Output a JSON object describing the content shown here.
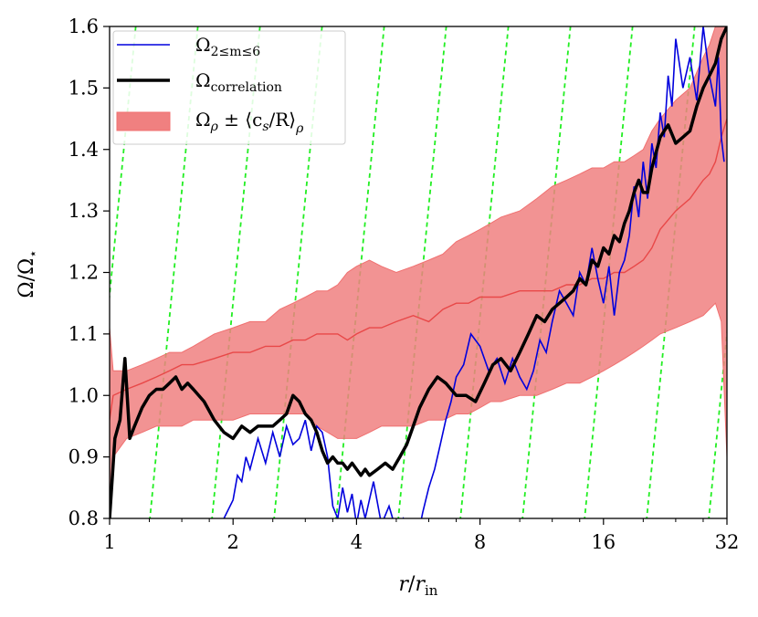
{
  "chart_data": {
    "type": "line",
    "title": "",
    "xlabel": "r/r_in",
    "ylabel": "Ω/Ω⋆",
    "xscale": "log2",
    "xlim": [
      1,
      32
    ],
    "ylim": [
      0.8,
      1.6
    ],
    "xticks": [
      1,
      2,
      4,
      8,
      16,
      32
    ],
    "xtick_labels": [
      "1",
      "2",
      "4",
      "8",
      "16",
      "32"
    ],
    "yticks": [
      0.8,
      0.9,
      1.0,
      1.1,
      1.2,
      1.3,
      1.4,
      1.5,
      1.6
    ],
    "ytick_labels": [
      "0.8",
      "0.9",
      "1.0",
      "1.1",
      "1.2",
      "1.3",
      "1.4",
      "1.5",
      "1.6"
    ],
    "grid": false,
    "legend_position": "top-left",
    "legend": [
      {
        "label_main": "Ω",
        "label_sub": "2≤m≤6",
        "style": "thin-line",
        "color": "#0000dd"
      },
      {
        "label_main": "Ω",
        "label_sub": "correlation",
        "style": "thick-line",
        "color": "#000000"
      },
      {
        "label_main": "Ω",
        "label_sub": "ρ",
        "label_suffix": " ± ⟨c",
        "label_suffix_sub": "s",
        "label_suffix_end": "/R⟩",
        "label_end_sub": "ρ",
        "style": "band",
        "color": "#f07070"
      }
    ],
    "series": [
      {
        "name": "Ω_{2≤m≤6}",
        "color": "#0000dd",
        "x": [
          1.9,
          2.0,
          2.05,
          2.1,
          2.15,
          2.2,
          2.3,
          2.4,
          2.5,
          2.6,
          2.7,
          2.8,
          2.9,
          3.0,
          3.1,
          3.2,
          3.3,
          3.4,
          3.45,
          3.5,
          3.6,
          3.7,
          3.8,
          3.9,
          4.0,
          4.1,
          4.2,
          4.4,
          4.6,
          4.8,
          5.0,
          5.2,
          5.4,
          5.5,
          5.6,
          5.8,
          6.0,
          6.2,
          6.4,
          6.6,
          6.8,
          7.0,
          7.3,
          7.6,
          8.0,
          8.4,
          8.8,
          9.2,
          9.6,
          10.0,
          10.4,
          10.8,
          11.2,
          11.6,
          12.0,
          12.5,
          13.0,
          13.5,
          14.0,
          14.5,
          15.0,
          15.5,
          16.0,
          16.5,
          17.0,
          17.5,
          18.0,
          18.5,
          19.0,
          19.5,
          20.0,
          20.5,
          21.0,
          21.5,
          22.0,
          22.5,
          23.0,
          23.5,
          24.0,
          25.0,
          26.0,
          27.0,
          28.0,
          29.0,
          30.0,
          30.5,
          31.0,
          31.5
        ],
        "y": [
          0.8,
          0.83,
          0.87,
          0.86,
          0.9,
          0.88,
          0.93,
          0.89,
          0.94,
          0.9,
          0.95,
          0.92,
          0.93,
          0.96,
          0.91,
          0.95,
          0.94,
          0.9,
          0.86,
          0.82,
          0.8,
          0.85,
          0.81,
          0.84,
          0.79,
          0.83,
          0.8,
          0.86,
          0.79,
          0.82,
          0.78,
          0.8,
          0.77,
          0.79,
          0.76,
          0.81,
          0.85,
          0.88,
          0.92,
          0.96,
          0.99,
          1.03,
          1.05,
          1.1,
          1.08,
          1.04,
          1.06,
          1.02,
          1.06,
          1.03,
          1.01,
          1.04,
          1.09,
          1.07,
          1.12,
          1.17,
          1.15,
          1.13,
          1.2,
          1.18,
          1.24,
          1.19,
          1.15,
          1.21,
          1.13,
          1.2,
          1.22,
          1.26,
          1.34,
          1.29,
          1.38,
          1.32,
          1.41,
          1.37,
          1.46,
          1.42,
          1.52,
          1.47,
          1.58,
          1.5,
          1.55,
          1.48,
          1.6,
          1.52,
          1.47,
          1.55,
          1.42,
          1.38
        ]
      },
      {
        "name": "Ω_correlation",
        "color": "#000000",
        "x": [
          1.0,
          1.03,
          1.06,
          1.09,
          1.12,
          1.15,
          1.2,
          1.25,
          1.3,
          1.35,
          1.4,
          1.45,
          1.5,
          1.55,
          1.6,
          1.7,
          1.8,
          1.9,
          2.0,
          2.1,
          2.2,
          2.3,
          2.4,
          2.5,
          2.6,
          2.7,
          2.8,
          2.9,
          3.0,
          3.1,
          3.2,
          3.3,
          3.4,
          3.5,
          3.6,
          3.7,
          3.8,
          3.9,
          4.0,
          4.1,
          4.2,
          4.3,
          4.5,
          4.7,
          4.9,
          5.1,
          5.3,
          5.5,
          5.7,
          6.0,
          6.3,
          6.6,
          7.0,
          7.4,
          7.8,
          8.2,
          8.6,
          9.0,
          9.5,
          10.0,
          10.5,
          11.0,
          11.5,
          12.0,
          12.5,
          13.0,
          13.5,
          14.0,
          14.5,
          15.0,
          15.5,
          16.0,
          16.5,
          17.0,
          17.5,
          18.0,
          18.5,
          19.0,
          19.5,
          20.0,
          20.5,
          21.0,
          22.0,
          23.0,
          24.0,
          25.0,
          26.0,
          27.0,
          28.0,
          29.0,
          30.0,
          31.0,
          32.0
        ],
        "y": [
          0.8,
          0.93,
          0.96,
          1.06,
          0.93,
          0.95,
          0.98,
          1.0,
          1.01,
          1.01,
          1.02,
          1.03,
          1.01,
          1.02,
          1.01,
          0.99,
          0.96,
          0.94,
          0.93,
          0.95,
          0.94,
          0.95,
          0.95,
          0.95,
          0.96,
          0.97,
          1.0,
          0.99,
          0.97,
          0.96,
          0.94,
          0.91,
          0.89,
          0.9,
          0.89,
          0.89,
          0.88,
          0.89,
          0.88,
          0.87,
          0.88,
          0.87,
          0.88,
          0.89,
          0.88,
          0.9,
          0.92,
          0.95,
          0.98,
          1.01,
          1.03,
          1.02,
          1.0,
          1.0,
          0.99,
          1.02,
          1.05,
          1.06,
          1.04,
          1.07,
          1.1,
          1.13,
          1.12,
          1.14,
          1.15,
          1.16,
          1.17,
          1.19,
          1.18,
          1.22,
          1.21,
          1.24,
          1.23,
          1.26,
          1.25,
          1.28,
          1.3,
          1.33,
          1.35,
          1.33,
          1.33,
          1.37,
          1.42,
          1.44,
          1.41,
          1.42,
          1.43,
          1.47,
          1.5,
          1.52,
          1.54,
          1.58,
          1.6
        ]
      },
      {
        "name": "Ω_ρ ± ⟨c_s/R⟩_ρ",
        "color": "#f07070",
        "x": [
          1.0,
          1.02,
          1.1,
          1.2,
          1.3,
          1.4,
          1.5,
          1.6,
          1.8,
          2.0,
          2.2,
          2.4,
          2.6,
          2.8,
          3.0,
          3.2,
          3.4,
          3.6,
          3.8,
          4.0,
          4.3,
          4.6,
          5.0,
          5.5,
          6.0,
          6.5,
          7.0,
          7.5,
          8.0,
          8.5,
          9.0,
          10.0,
          11.0,
          12.0,
          13.0,
          14.0,
          15.0,
          16.0,
          17.0,
          18.0,
          19.0,
          20.0,
          21.0,
          22.0,
          24.0,
          26.0,
          28.0,
          29.0,
          30.0,
          31.0,
          32.0
        ],
        "center": [
          0.96,
          1.0,
          1.01,
          1.02,
          1.03,
          1.04,
          1.05,
          1.05,
          1.06,
          1.07,
          1.07,
          1.08,
          1.08,
          1.09,
          1.09,
          1.1,
          1.1,
          1.1,
          1.09,
          1.1,
          1.11,
          1.11,
          1.12,
          1.13,
          1.12,
          1.14,
          1.15,
          1.15,
          1.16,
          1.16,
          1.16,
          1.17,
          1.17,
          1.17,
          1.18,
          1.18,
          1.19,
          1.19,
          1.2,
          1.2,
          1.21,
          1.22,
          1.24,
          1.27,
          1.3,
          1.32,
          1.35,
          1.36,
          1.38,
          1.42,
          1.45
        ],
        "upper": [
          1.11,
          1.04,
          1.04,
          1.05,
          1.06,
          1.07,
          1.07,
          1.08,
          1.1,
          1.11,
          1.12,
          1.12,
          1.14,
          1.15,
          1.16,
          1.17,
          1.17,
          1.18,
          1.2,
          1.21,
          1.22,
          1.21,
          1.2,
          1.21,
          1.22,
          1.23,
          1.25,
          1.26,
          1.27,
          1.28,
          1.29,
          1.3,
          1.32,
          1.34,
          1.35,
          1.36,
          1.37,
          1.37,
          1.38,
          1.38,
          1.39,
          1.4,
          1.43,
          1.45,
          1.48,
          1.5,
          1.55,
          1.57,
          1.6,
          1.6,
          1.62
        ],
        "lower": [
          0.83,
          0.9,
          0.93,
          0.94,
          0.95,
          0.95,
          0.95,
          0.96,
          0.96,
          0.96,
          0.97,
          0.97,
          0.97,
          0.97,
          0.97,
          0.95,
          0.94,
          0.93,
          0.93,
          0.93,
          0.94,
          0.95,
          0.95,
          0.95,
          0.96,
          0.96,
          0.97,
          0.97,
          0.98,
          0.99,
          0.99,
          1.0,
          1.0,
          1.01,
          1.02,
          1.02,
          1.03,
          1.04,
          1.05,
          1.06,
          1.07,
          1.08,
          1.09,
          1.1,
          1.11,
          1.12,
          1.13,
          1.14,
          1.15,
          1.12,
          0.9
        ]
      }
    ],
    "reference_lines": {
      "color": "#22ee22",
      "style": "dashed",
      "label": ""
    }
  }
}
